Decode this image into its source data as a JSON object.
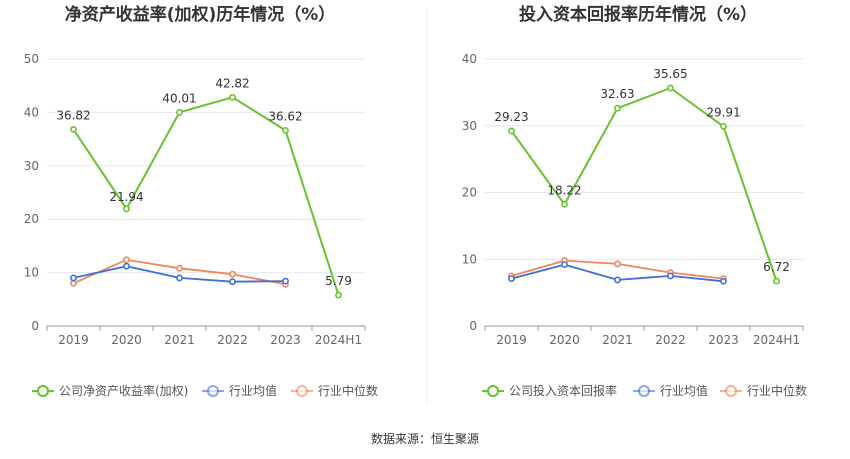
{
  "footer": {
    "source": "数据来源：恒生聚源"
  },
  "colors": {
    "company": "#66c32c",
    "avg": "#3f6fd6",
    "median": "#f0845a",
    "grid": "#e4e8f2",
    "axis": "#999999"
  },
  "chart_data": [
    {
      "type": "line",
      "title": "净资产收益率(加权)历年情况（%）",
      "categories": [
        "2019",
        "2020",
        "2021",
        "2022",
        "2023",
        "2024H1"
      ],
      "ylim": [
        0,
        50
      ],
      "yticks": [
        "0",
        "10",
        "20",
        "30",
        "40",
        "50"
      ],
      "grid": true,
      "legend": "bottom",
      "series": [
        {
          "name": "公司净资产收益率(加权)",
          "values": [
            36.82,
            21.94,
            40.01,
            42.82,
            36.62,
            5.79
          ],
          "labels": [
            "36.82",
            "21.94",
            "40.01",
            "42.82",
            "36.62",
            "5.79"
          ]
        },
        {
          "name": "行业均值",
          "values": [
            9.0,
            11.2,
            9.0,
            8.3,
            8.4,
            null
          ]
        },
        {
          "name": "行业中位数",
          "values": [
            8.0,
            12.4,
            10.8,
            9.7,
            7.8,
            null
          ]
        }
      ]
    },
    {
      "type": "line",
      "title": "投入资本回报率历年情况（%）",
      "categories": [
        "2019",
        "2020",
        "2021",
        "2022",
        "2023",
        "2024H1"
      ],
      "ylim": [
        0,
        40
      ],
      "yticks": [
        "0",
        "10",
        "20",
        "30",
        "40"
      ],
      "grid": true,
      "legend": "bottom",
      "series": [
        {
          "name": "公司投入资本回报率",
          "values": [
            29.23,
            18.22,
            32.63,
            35.65,
            29.91,
            6.72
          ],
          "labels": [
            "29.23",
            "18.22",
            "32.63",
            "35.65",
            "29.91",
            "6.72"
          ]
        },
        {
          "name": "行业均值",
          "values": [
            7.1,
            9.2,
            6.9,
            7.5,
            6.7,
            null
          ]
        },
        {
          "name": "行业中位数",
          "values": [
            7.5,
            9.8,
            9.3,
            8.0,
            7.1,
            null
          ]
        }
      ]
    }
  ]
}
